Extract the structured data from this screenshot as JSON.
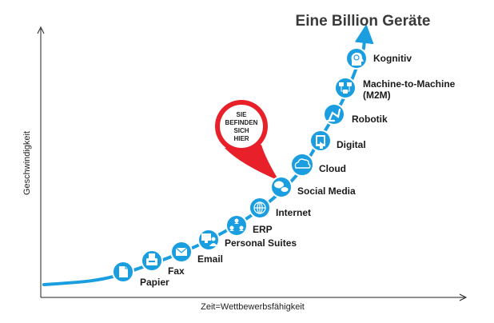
{
  "title": "Eine Billion Geräte",
  "y_axis_label": "Geschwindigkeit",
  "x_axis_label": "Zeit=Wettbewerbsfähigkeit",
  "callout": {
    "lines": [
      "SIE",
      "BEFINDEN",
      "SICH",
      "HIER"
    ]
  },
  "colors": {
    "accent": "#1a9ee0",
    "callout": "#e8202a",
    "curve": "#1a9ee0"
  },
  "milestones": [
    {
      "label": "Papier",
      "icon": "document-icon"
    },
    {
      "label": "Fax",
      "icon": "fax-icon"
    },
    {
      "label": "Email",
      "icon": "envelope-icon"
    },
    {
      "label": "Personal Suites",
      "icon": "monitor-user-icon"
    },
    {
      "label": "ERP",
      "icon": "network-people-icon"
    },
    {
      "label": "Internet",
      "icon": "globe-icon"
    },
    {
      "label": "Social Media",
      "icon": "chat-bubbles-icon"
    },
    {
      "label": "Cloud",
      "icon": "cloud-icon"
    },
    {
      "label": "Digital",
      "icon": "tablet-touch-icon"
    },
    {
      "label": "Robotik",
      "icon": "robot-arm-icon"
    },
    {
      "label": "Machine-to-Machine",
      "label2": "(M2M)",
      "icon": "m2m-network-icon"
    },
    {
      "label": "Kognitiv",
      "icon": "brain-head-icon"
    }
  ]
}
